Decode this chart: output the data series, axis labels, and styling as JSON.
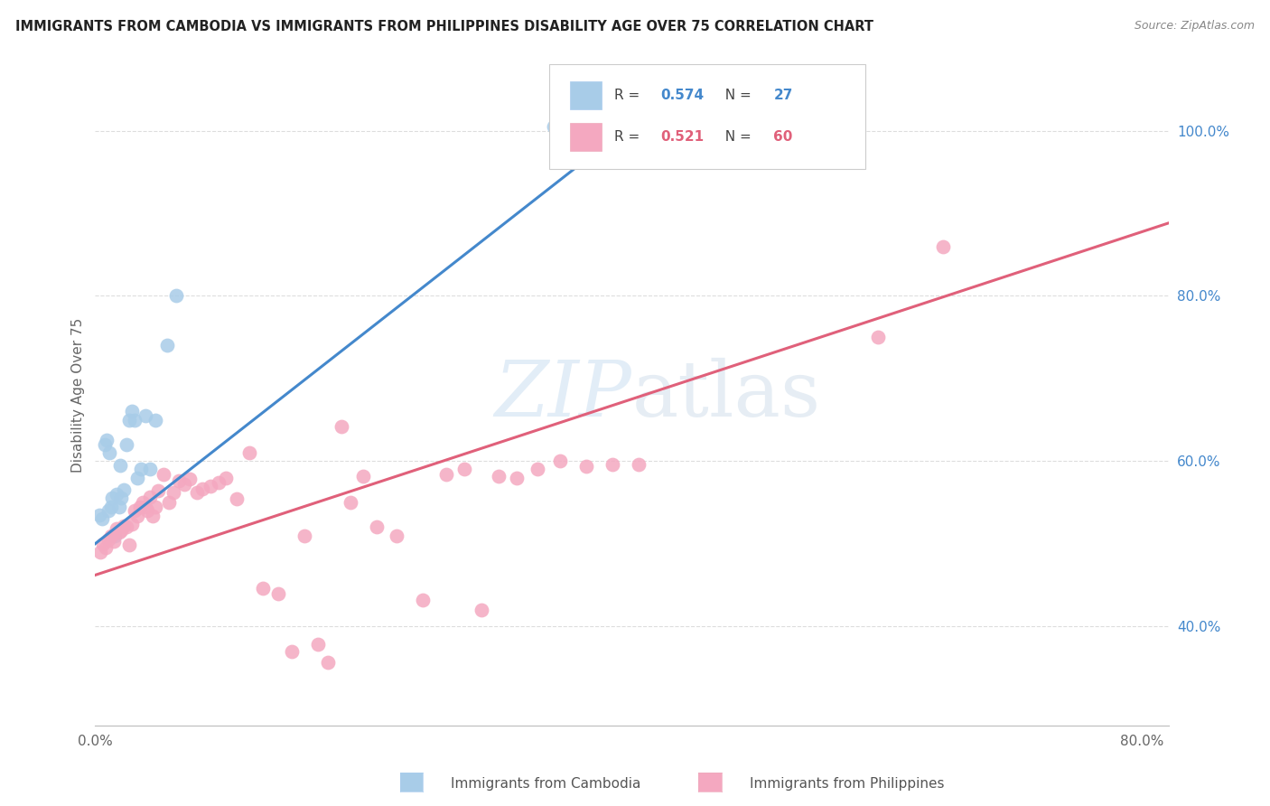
{
  "title": "IMMIGRANTS FROM CAMBODIA VS IMMIGRANTS FROM PHILIPPINES DISABILITY AGE OVER 75 CORRELATION CHART",
  "source": "Source: ZipAtlas.com",
  "ylabel": "Disability Age Over 75",
  "xlim": [
    0.0,
    0.82
  ],
  "ylim": [
    0.28,
    1.08
  ],
  "x_ticks": [
    0.0,
    0.1,
    0.2,
    0.3,
    0.4,
    0.5,
    0.6,
    0.7,
    0.8
  ],
  "x_tick_labels": [
    "0.0%",
    "",
    "",
    "",
    "",
    "",
    "",
    "",
    "80.0%"
  ],
  "y_ticks_right": [
    0.4,
    0.6,
    0.8,
    1.0
  ],
  "y_tick_labels_right": [
    "40.0%",
    "60.0%",
    "80.0%",
    "100.0%"
  ],
  "r1": "0.574",
  "n1": "27",
  "r2": "0.521",
  "n2": "60",
  "legend_label1": "Immigrants from Cambodia",
  "legend_label2": "Immigrants from Philippines",
  "watermark_zip": "ZIP",
  "watermark_atlas": "atlas",
  "color_blue_scatter": "#A8CCE8",
  "color_pink_scatter": "#F4A8C0",
  "color_blue_line": "#4488CC",
  "color_pink_line": "#E0607A",
  "color_blue_text": "#4488CC",
  "color_pink_text": "#E0607A",
  "color_title": "#222222",
  "background": "#FFFFFF",
  "grid_color": "#DDDDDD",
  "scatter_blue_x": [
    0.003,
    0.005,
    0.007,
    0.009,
    0.01,
    0.011,
    0.012,
    0.013,
    0.015,
    0.016,
    0.018,
    0.019,
    0.02,
    0.022,
    0.024,
    0.026,
    0.028,
    0.03,
    0.032,
    0.035,
    0.038,
    0.042,
    0.046,
    0.055,
    0.062,
    0.35,
    0.385
  ],
  "scatter_blue_y": [
    0.535,
    0.53,
    0.62,
    0.625,
    0.54,
    0.61,
    0.545,
    0.555,
    0.51,
    0.56,
    0.545,
    0.595,
    0.555,
    0.565,
    0.62,
    0.65,
    0.66,
    0.65,
    0.58,
    0.59,
    0.655,
    0.59,
    0.65,
    0.74,
    0.8,
    1.005,
    1.0
  ],
  "scatter_pink_x": [
    0.004,
    0.006,
    0.008,
    0.01,
    0.012,
    0.014,
    0.016,
    0.018,
    0.02,
    0.022,
    0.024,
    0.026,
    0.028,
    0.03,
    0.032,
    0.034,
    0.036,
    0.038,
    0.04,
    0.042,
    0.044,
    0.046,
    0.048,
    0.052,
    0.056,
    0.06,
    0.064,
    0.068,
    0.072,
    0.078,
    0.082,
    0.088,
    0.094,
    0.1,
    0.108,
    0.118,
    0.128,
    0.14,
    0.15,
    0.16,
    0.17,
    0.178,
    0.188,
    0.195,
    0.205,
    0.215,
    0.23,
    0.25,
    0.268,
    0.282,
    0.295,
    0.308,
    0.322,
    0.338,
    0.355,
    0.375,
    0.395,
    0.415,
    0.598,
    0.648
  ],
  "scatter_pink_y": [
    0.49,
    0.5,
    0.495,
    0.505,
    0.51,
    0.503,
    0.518,
    0.514,
    0.516,
    0.522,
    0.52,
    0.498,
    0.524,
    0.54,
    0.534,
    0.544,
    0.55,
    0.544,
    0.54,
    0.556,
    0.534,
    0.544,
    0.564,
    0.584,
    0.55,
    0.562,
    0.576,
    0.572,
    0.578,
    0.562,
    0.566,
    0.57,
    0.574,
    0.58,
    0.554,
    0.61,
    0.446,
    0.44,
    0.37,
    0.51,
    0.378,
    0.356,
    0.642,
    0.55,
    0.582,
    0.52,
    0.51,
    0.432,
    0.584,
    0.59,
    0.42,
    0.582,
    0.58,
    0.59,
    0.6,
    0.594,
    0.596,
    0.596,
    0.75,
    0.86
  ],
  "blue_line_x": [
    0.0,
    0.405
  ],
  "blue_line_y": [
    0.5,
    1.002
  ],
  "pink_line_x": [
    0.0,
    0.82
  ],
  "pink_line_y": [
    0.462,
    0.888
  ]
}
